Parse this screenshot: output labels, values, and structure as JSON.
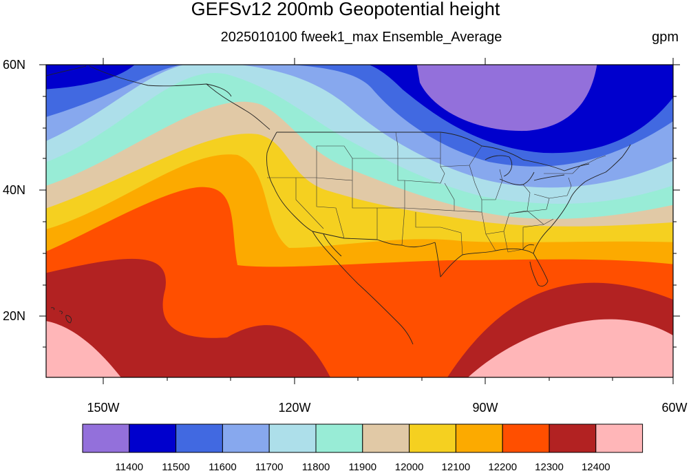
{
  "header": {
    "title": "GEFSv12 200mb Geopotential height",
    "subtitle": "2025010100 fweek1_max Ensemble_Average",
    "units": "gpm"
  },
  "map": {
    "projection": "cylindrical-equidistant",
    "lon_range": [
      -160,
      -60
    ],
    "lat_range": [
      10,
      60
    ],
    "lon_ticks": [
      {
        "value": -150,
        "label": "150W"
      },
      {
        "value": -120,
        "label": "120W"
      },
      {
        "value": -90,
        "label": "90W"
      },
      {
        "value": -60,
        "label": "60W"
      }
    ],
    "lat_ticks": [
      {
        "value": 60,
        "label": "60N"
      },
      {
        "value": 40,
        "label": "40N"
      },
      {
        "value": 20,
        "label": "20N"
      }
    ],
    "features": [
      "coastlines",
      "us-state-borders",
      "country-borders"
    ]
  },
  "colorbar": {
    "labels": [
      "11400",
      "11500",
      "11600",
      "11700",
      "11800",
      "11900",
      "12000",
      "12100",
      "12200",
      "12300",
      "12400"
    ],
    "colors": [
      "#9370DB",
      "#0000CD",
      "#4169E1",
      "#87A8EE",
      "#ADDFEA",
      "#98ECD6",
      "#E1C9A6",
      "#F5D020",
      "#FCAA00",
      "#FF4F00",
      "#B22222",
      "#FFB6B8"
    ]
  }
}
